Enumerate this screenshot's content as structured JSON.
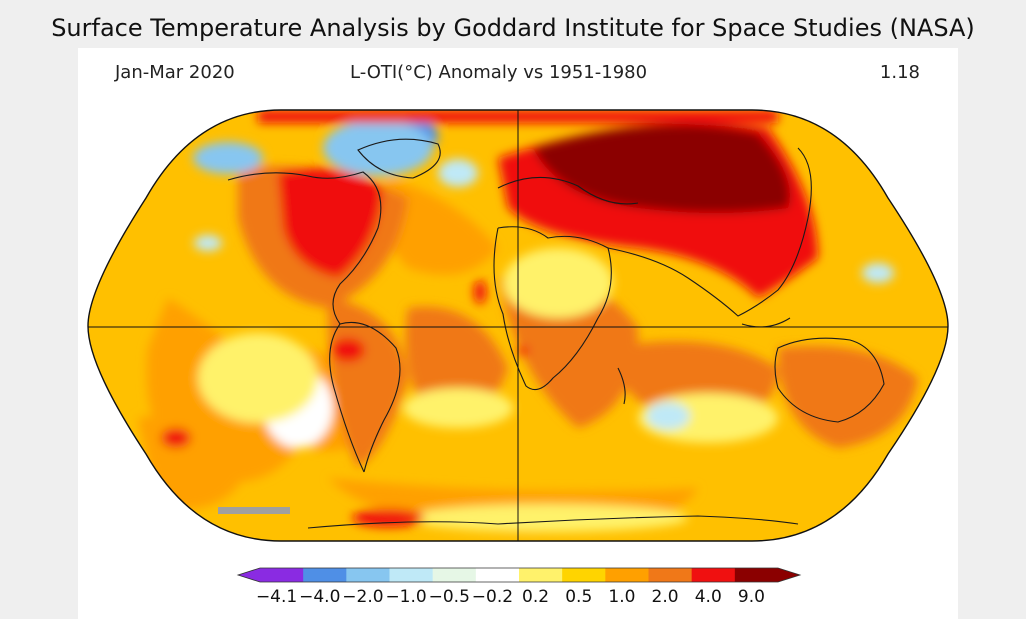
{
  "page_title": "Surface Temperature Analysis by Goddard Institute for Space Studies (NASA)",
  "map": {
    "period": "Jan-Mar 2020",
    "description": "L-OTI(°C) Anomaly vs 1951-1980",
    "global_mean": "1.18",
    "projection": "robinson",
    "colors": {
      "ocean_base": "#ffc000",
      "c_neg4": "#8a2be2",
      "c_neg2": "#4f8fe6",
      "c_neg1": "#87c6f0",
      "c_neg05": "#bfe9f7",
      "c_neg02": "#e6f7e6",
      "c_zero": "#ffffff",
      "c_02": "#fff26b",
      "c_05": "#ffd400",
      "c_1": "#ffa000",
      "c_2": "#f07818",
      "c_4": "#f01010",
      "c_9": "#8b0000",
      "land_missing": "#a0a0a0",
      "coast": "#1a1a1a"
    }
  },
  "legend": {
    "colors": [
      "#8a2be2",
      "#4f8fe6",
      "#87c6f0",
      "#bfe9f7",
      "#e6f7e6",
      "#ffffff",
      "#fff26b",
      "#ffd400",
      "#ffa000",
      "#f07818",
      "#f01010",
      "#8b0000"
    ],
    "ticks": [
      "−4.1",
      "−4.0",
      "−2.0",
      "−1.0",
      "−0.5",
      "−0.2",
      "0.2",
      "0.5",
      "1.0",
      "2.0",
      "4.0",
      "9.0"
    ]
  }
}
